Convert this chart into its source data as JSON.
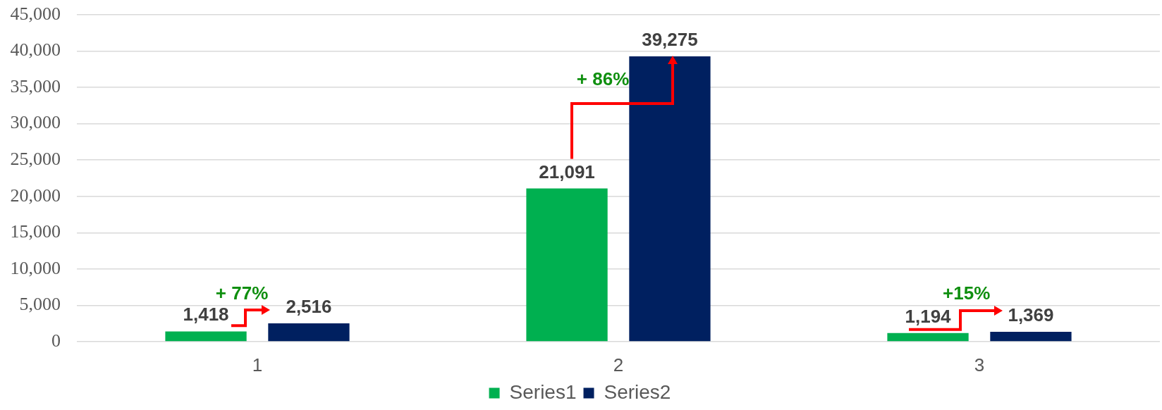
{
  "chart_data": {
    "type": "bar",
    "categories": [
      "1",
      "2",
      "3"
    ],
    "series": [
      {
        "name": "Series1",
        "color": "#00b050",
        "values": [
          1418,
          21091,
          1194
        ],
        "value_labels": [
          "1,418",
          "21,091",
          "1,194"
        ]
      },
      {
        "name": "Series2",
        "color": "#002060",
        "values": [
          2516,
          39275,
          1369
        ],
        "value_labels": [
          "2,516",
          "39,275",
          "1,369"
        ]
      }
    ],
    "ylim": [
      0,
      45000
    ],
    "yticks": [
      0,
      {
        "value": 5000,
        "label": "5,000"
      },
      {
        "value": 10000,
        "label": "10,000"
      },
      {
        "value": 15000,
        "label": "15,000"
      },
      {
        "value": 20000,
        "label": "20,000"
      },
      {
        "value": 25000,
        "label": "25,000"
      },
      {
        "value": 30000,
        "label": "30,000"
      },
      {
        "value": 35000,
        "label": "35,000"
      },
      {
        "value": 40000,
        "label": "40,000"
      },
      {
        "value": 45000,
        "label": "45,000"
      }
    ],
    "grid": "y",
    "legend": "bottom",
    "annotations": [
      "+ 77%",
      "+ 86%",
      "+15%"
    ]
  }
}
